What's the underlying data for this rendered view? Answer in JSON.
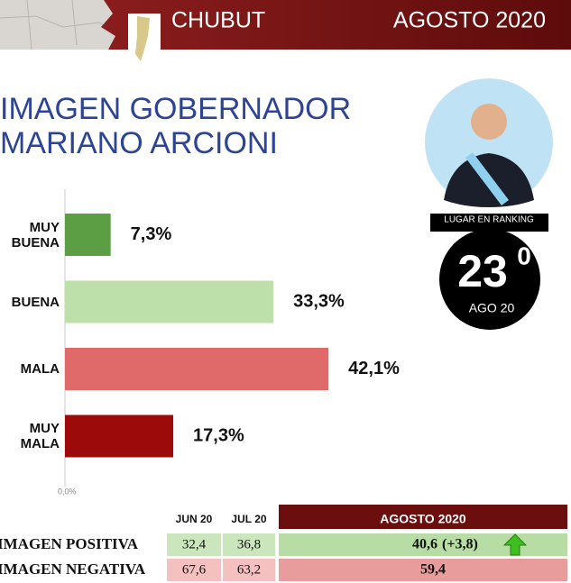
{
  "header": {
    "region": "CHUBUT",
    "period": "AGOSTO 2020"
  },
  "title": [
    "IMAGEN GOBERNADOR",
    "MARIANO ARCIONI"
  ],
  "ranking": {
    "caption": "LUGAR EN RANKING",
    "position": "23",
    "superscript": "0",
    "date": "AGO 20"
  },
  "chart_data": {
    "type": "barh",
    "categories": [
      "MUY BUENA",
      "BUENA",
      "MALA",
      "MUY MALA"
    ],
    "values": [
      7.3,
      33.3,
      42.1,
      17.3
    ],
    "value_labels": [
      "7,3%",
      "33,3%",
      "42,1%",
      "17,3%"
    ],
    "colors": [
      "#5b9e43",
      "#bde0aa",
      "#e06a6a",
      "#9c0a0a"
    ],
    "xlim": [
      0,
      50
    ],
    "xticks": [
      {
        "value": 0,
        "label": "0,0%"
      }
    ]
  },
  "table": {
    "columns": [
      "JUN 20",
      "JUL 20",
      "AGOSTO 2020"
    ],
    "rows": [
      {
        "label": "IMAGEN POSITIVA",
        "values": [
          "32,4",
          "36,8",
          "40,6"
        ],
        "change": "(+3,8)"
      },
      {
        "label": "IMAGEN NEGATIVA",
        "values": [
          "67,6",
          "63,2",
          "59,4"
        ]
      }
    ]
  }
}
